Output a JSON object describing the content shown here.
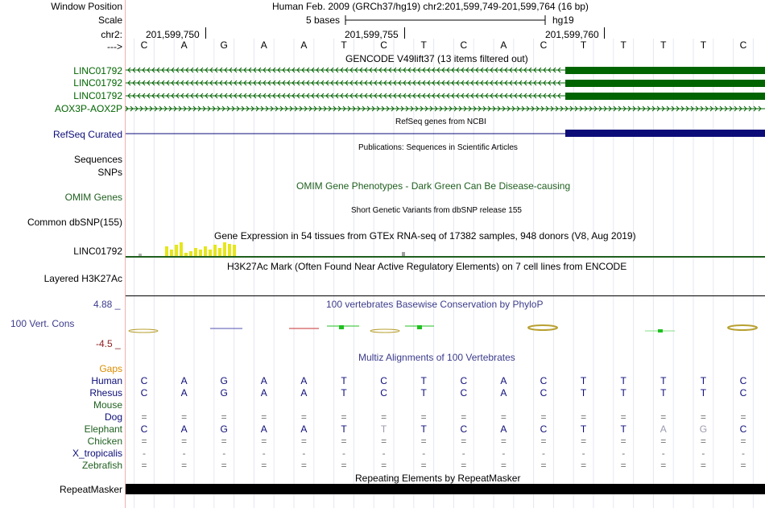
{
  "header": {
    "window_position_label": "Window Position",
    "scale_label": "Scale",
    "chrom_label": "chr2:",
    "arrow_label": "--->",
    "position_text": "Human Feb. 2009 (GRCh37/hg19)   chr2:201,599,749-201,599,764 (16 bp)",
    "scale_text": "5 bases",
    "assembly_text": "hg19",
    "coords": [
      "201,599,750",
      "201,599,755",
      "201,599,760"
    ],
    "reference_bases": [
      "C",
      "A",
      "G",
      "A",
      "A",
      "T",
      "C",
      "T",
      "C",
      "A",
      "C",
      "T",
      "T",
      "T",
      "T",
      "C"
    ]
  },
  "tracks": {
    "gencode": {
      "title": "GENCODE V49lift37 (13 items filtered out)",
      "items": [
        "LINC01792",
        "LINC01792",
        "LINC01792",
        "AOX3P-AOX2P"
      ],
      "color": "#006400"
    },
    "refseq": {
      "label": "RefSeq Curated",
      "title": "RefSeq genes from NCBI",
      "color": "#0c0c78"
    },
    "publications": {
      "title": "Publications: Sequences in Scientific Articles"
    },
    "sequences": {
      "label": "Sequences"
    },
    "snps": {
      "label": "SNPs"
    },
    "omim": {
      "label": "OMIM Genes",
      "title": "OMIM Gene Phenotypes - Dark Green Can Be Disease-causing",
      "color": "#1f5f1f"
    },
    "dbsnp": {
      "label": "Common dbSNP(155)",
      "title": "Short Genetic Variants from dbSNP release 155"
    },
    "gtex": {
      "label": "LINC01792",
      "title": "Gene Expression in 54 tissues from GTEx RNA-seq of 17382 samples, 948 donors (V8, Aug 2019)",
      "color": "#e6e61a"
    },
    "h3k27ac": {
      "label": "Layered H3K27Ac",
      "title": "H3K27Ac Mark (Often Found Near Active Regulatory Elements) on 7 cell lines from ENCODE"
    },
    "conservation": {
      "label": "100 Vert. Cons",
      "title": "100 vertebrates Basewise Conservation by PhyloP",
      "max_label": "4.88 _",
      "min_label": "-4.5 _",
      "color": "#3c3c8c",
      "max_color": "#3c3c8c",
      "min_color": "#8c1e1e"
    },
    "multiz": {
      "title": "Multiz Alignments of 100 Vertebrates",
      "gaps_label": "Gaps",
      "gaps_color": "#d98c00",
      "title_color": "#3c3c8c",
      "species": [
        {
          "name": "Human",
          "color": "#0c0c78",
          "bases": [
            "C",
            "A",
            "G",
            "A",
            "A",
            "T",
            "C",
            "T",
            "C",
            "A",
            "C",
            "T",
            "T",
            "T",
            "T",
            "C"
          ]
        },
        {
          "name": "Rhesus",
          "color": "#0c0c78",
          "bases": [
            "C",
            "A",
            "G",
            "A",
            "A",
            "T",
            "C",
            "T",
            "C",
            "A",
            "C",
            "T",
            "T",
            "T",
            "T",
            "C"
          ]
        },
        {
          "name": "Mouse",
          "color": "#1f5f1f",
          "bases": []
        },
        {
          "name": "Dog",
          "color": "#0c0c78",
          "bases": [
            "=",
            "=",
            "=",
            "=",
            "=",
            "=",
            "=",
            "=",
            "=",
            "=",
            "=",
            "=",
            "=",
            "=",
            "=",
            "="
          ]
        },
        {
          "name": "Elephant",
          "color": "#1f5f1f",
          "bases": [
            "C",
            "A",
            "G",
            "A",
            "A",
            "T",
            "T",
            "T",
            "C",
            "A",
            "C",
            "T",
            "T",
            "A",
            "G",
            "C"
          ]
        },
        {
          "name": "Chicken",
          "color": "#1f5f1f",
          "bases": [
            "=",
            "=",
            "=",
            "=",
            "=",
            "=",
            "=",
            "=",
            "=",
            "=",
            "=",
            "=",
            "=",
            "=",
            "=",
            "="
          ]
        },
        {
          "name": "X_tropicalis",
          "color": "#0c0c78",
          "bases": [
            "-",
            "-",
            "-",
            "-",
            "-",
            "-",
            "-",
            "-",
            "-",
            "-",
            "-",
            "-",
            "-",
            "-",
            "-",
            "-"
          ]
        },
        {
          "name": "Zebrafish",
          "color": "#1f5f1f",
          "bases": [
            "=",
            "=",
            "=",
            "=",
            "=",
            "=",
            "=",
            "=",
            "=",
            "=",
            "=",
            "=",
            "=",
            "=",
            "=",
            "="
          ]
        }
      ]
    },
    "repeatmasker": {
      "label": "RepeatMasker",
      "title": "Repeating Elements by RepeatMasker"
    }
  }
}
